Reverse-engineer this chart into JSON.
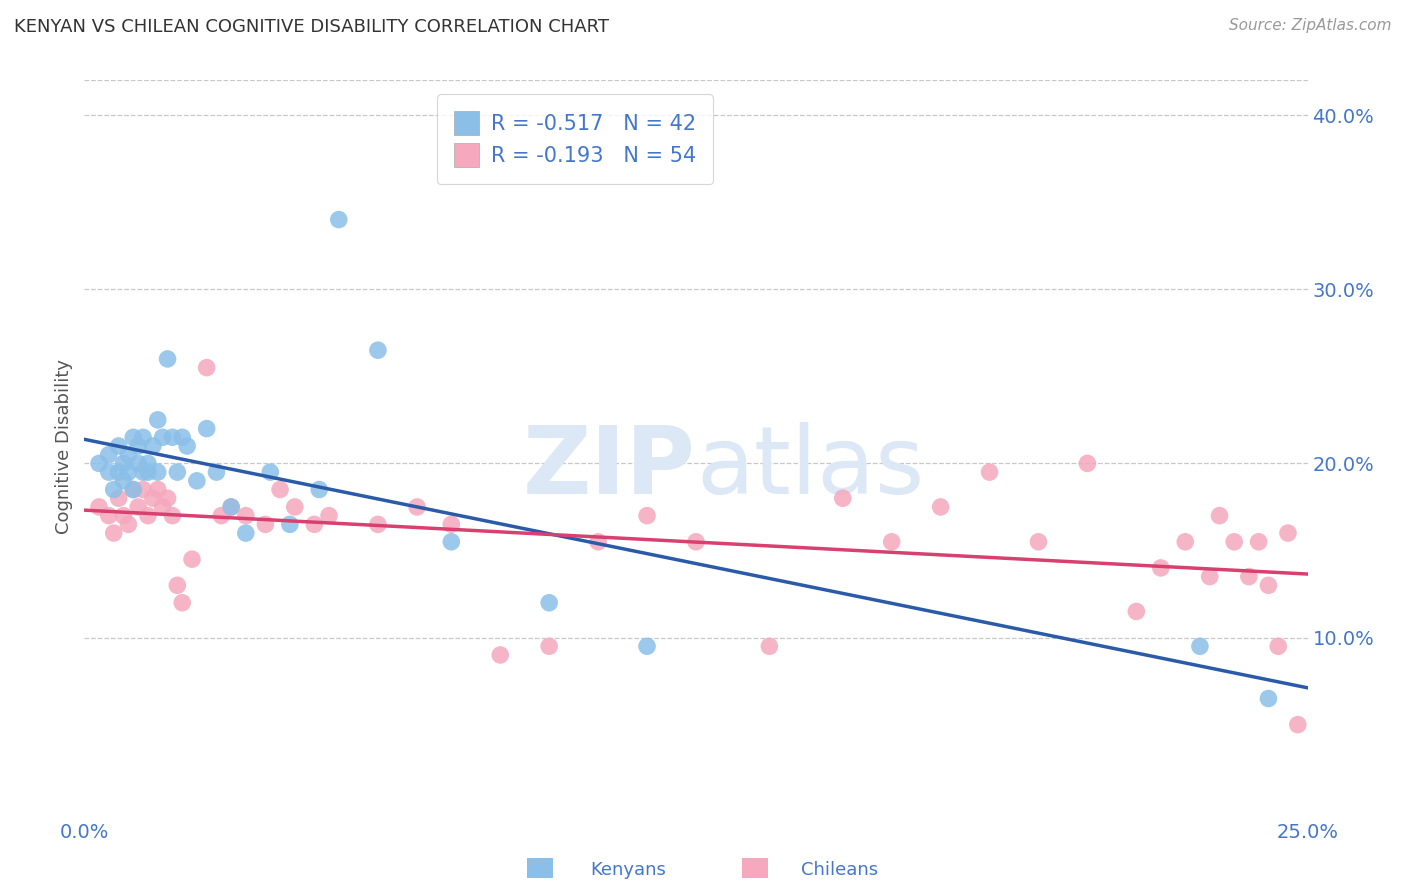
{
  "title": "KENYAN VS CHILEAN COGNITIVE DISABILITY CORRELATION CHART",
  "source": "Source: ZipAtlas.com",
  "ylabel": "Cognitive Disability",
  "x_min": 0.0,
  "x_max": 0.25,
  "y_min": 0.0,
  "y_max": 0.42,
  "x_ticks": [
    0.0,
    0.05,
    0.1,
    0.15,
    0.2,
    0.25
  ],
  "x_tick_labels": [
    "0.0%",
    "",
    "",
    "",
    "",
    "25.0%"
  ],
  "y_ticks": [
    0.1,
    0.2,
    0.3,
    0.4
  ],
  "y_tick_labels": [
    "10.0%",
    "20.0%",
    "30.0%",
    "40.0%"
  ],
  "kenyan_R": "-0.517",
  "kenyan_N": "42",
  "chilean_R": "-0.193",
  "chilean_N": "54",
  "kenyan_color": "#8BBFE8",
  "chilean_color": "#F5A8BE",
  "kenyan_line_color": "#2B5BA8",
  "chilean_line_color": "#D84070",
  "background_color": "#ffffff",
  "grid_color": "#C8C8C8",
  "title_color": "#333333",
  "tick_color": "#4477CC",
  "watermark_color": "#dce8f5",
  "kenyan_x": [
    0.003,
    0.005,
    0.005,
    0.006,
    0.007,
    0.007,
    0.008,
    0.008,
    0.009,
    0.009,
    0.01,
    0.01,
    0.011,
    0.011,
    0.012,
    0.012,
    0.013,
    0.013,
    0.014,
    0.015,
    0.015,
    0.016,
    0.017,
    0.018,
    0.019,
    0.02,
    0.021,
    0.023,
    0.025,
    0.027,
    0.03,
    0.033,
    0.038,
    0.042,
    0.048,
    0.052,
    0.06,
    0.075,
    0.095,
    0.115,
    0.228,
    0.242
  ],
  "kenyan_y": [
    0.2,
    0.195,
    0.205,
    0.185,
    0.195,
    0.21,
    0.2,
    0.19,
    0.205,
    0.195,
    0.215,
    0.185,
    0.21,
    0.2,
    0.195,
    0.215,
    0.2,
    0.195,
    0.21,
    0.225,
    0.195,
    0.215,
    0.26,
    0.215,
    0.195,
    0.215,
    0.21,
    0.19,
    0.22,
    0.195,
    0.175,
    0.16,
    0.195,
    0.165,
    0.185,
    0.34,
    0.265,
    0.155,
    0.12,
    0.095,
    0.095,
    0.065
  ],
  "chilean_x": [
    0.003,
    0.005,
    0.006,
    0.007,
    0.008,
    0.009,
    0.01,
    0.011,
    0.012,
    0.013,
    0.014,
    0.015,
    0.016,
    0.017,
    0.018,
    0.019,
    0.02,
    0.022,
    0.025,
    0.028,
    0.03,
    0.033,
    0.037,
    0.04,
    0.043,
    0.047,
    0.05,
    0.06,
    0.068,
    0.075,
    0.085,
    0.095,
    0.105,
    0.115,
    0.125,
    0.14,
    0.155,
    0.165,
    0.175,
    0.185,
    0.195,
    0.205,
    0.215,
    0.22,
    0.225,
    0.23,
    0.232,
    0.235,
    0.238,
    0.24,
    0.242,
    0.244,
    0.246,
    0.248
  ],
  "chilean_y": [
    0.175,
    0.17,
    0.16,
    0.18,
    0.17,
    0.165,
    0.185,
    0.175,
    0.185,
    0.17,
    0.18,
    0.185,
    0.175,
    0.18,
    0.17,
    0.13,
    0.12,
    0.145,
    0.255,
    0.17,
    0.175,
    0.17,
    0.165,
    0.185,
    0.175,
    0.165,
    0.17,
    0.165,
    0.175,
    0.165,
    0.09,
    0.095,
    0.155,
    0.17,
    0.155,
    0.095,
    0.18,
    0.155,
    0.175,
    0.195,
    0.155,
    0.2,
    0.115,
    0.14,
    0.155,
    0.135,
    0.17,
    0.155,
    0.135,
    0.155,
    0.13,
    0.095,
    0.16,
    0.05
  ]
}
